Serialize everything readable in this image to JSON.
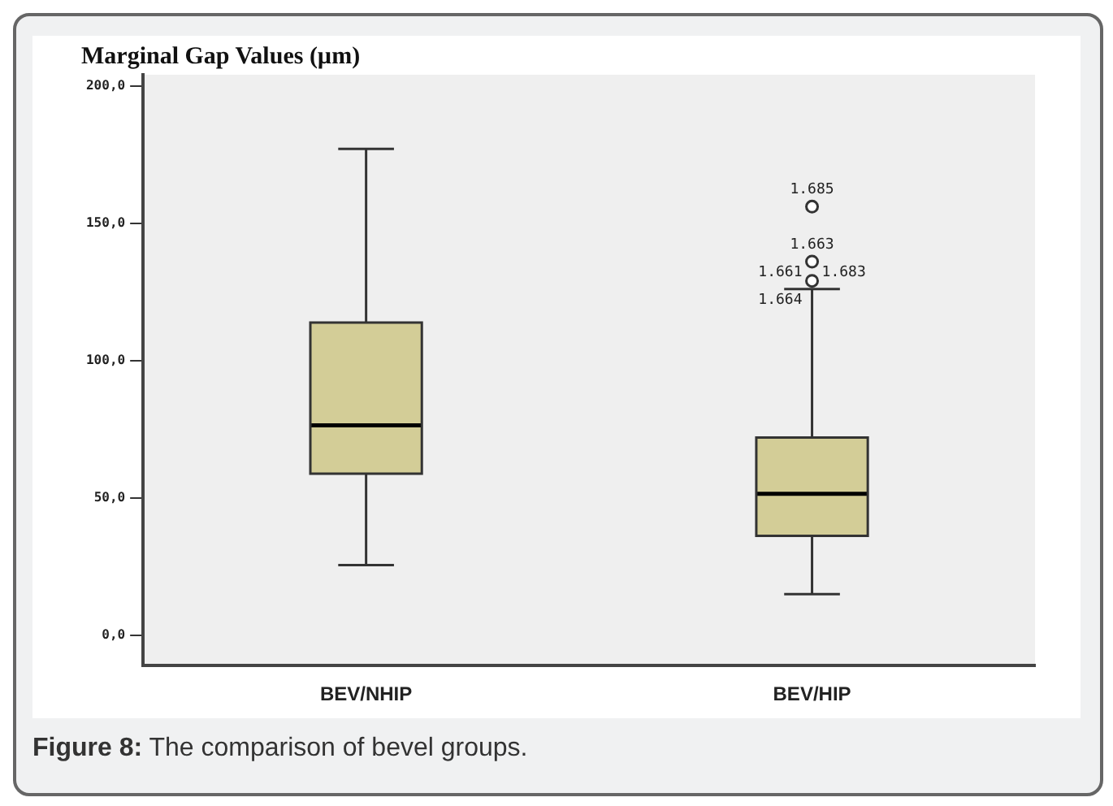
{
  "chart_data": {
    "type": "box",
    "title": "Marginal Gap Values (µm)",
    "categories": [
      "BEV/NHIP",
      "BEV/HIP"
    ],
    "color": "#d3cd97",
    "boxes": [
      {
        "low": 25.6,
        "q1": 58.8,
        "median": 76.4,
        "q3": 113.8,
        "high": 177
      },
      {
        "low": 15,
        "q1": 36.2,
        "median": 51.5,
        "q3": 72,
        "high": 126,
        "outliers": [
          156,
          136,
          129
        ]
      }
    ],
    "ylim": [
      -11,
      204
    ],
    "yticks": [
      {
        "value": 0,
        "label": "0,0"
      },
      {
        "value": 50,
        "label": "50,0"
      },
      {
        "value": 100,
        "label": "100,0"
      },
      {
        "value": 150,
        "label": "150,0"
      },
      {
        "value": 200,
        "label": "200,0"
      }
    ],
    "grid": false,
    "legend": false,
    "annotations": [
      "1.685",
      "1.663",
      "1.661",
      "1.683",
      "1.664",
      "Figure 8: The comparison of bevel groups."
    ]
  }
}
